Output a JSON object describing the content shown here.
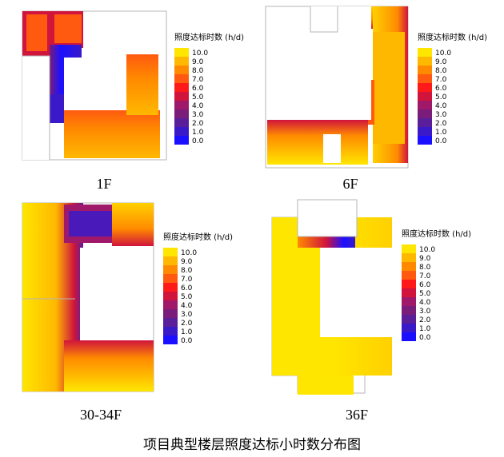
{
  "caption": "项目典型楼层照度达标小时数分布图",
  "legend_title": "照度达标时数 (h/d)",
  "colors": {
    "scale": [
      "#1a10ff",
      "#3a1ac8",
      "#5a1e9a",
      "#7a1c7a",
      "#a0186a",
      "#d0143c",
      "#ff1a1a",
      "#ff5a10",
      "#ff8a00",
      "#ffb800",
      "#ffe600"
    ],
    "outline": "#b4b4b4",
    "text": "#000000"
  },
  "chart_data": [
    {
      "type": "heatmap",
      "floor_label": "1F",
      "legend_title": "照度达标时数 (h/d)",
      "legend_ticks": [
        "10.0",
        "9.0",
        "8.0",
        "7.0",
        "6.0",
        "5.0",
        "4.0",
        "3.0",
        "2.0",
        "1.0",
        "0.0"
      ],
      "value_range": [
        0,
        10
      ]
    },
    {
      "type": "heatmap",
      "floor_label": "6F",
      "legend_title": "照度达标时数 (h/d)",
      "legend_ticks": [
        "10.0",
        "9.0",
        "8.0",
        "7.0",
        "6.0",
        "5.0",
        "4.0",
        "3.0",
        "2.0",
        "1.0",
        "0.0"
      ],
      "value_range": [
        0,
        10
      ]
    },
    {
      "type": "heatmap",
      "floor_label": "30-34F",
      "legend_title": "照度达标时数 (h/d)",
      "legend_ticks": [
        "10.0",
        "9.0",
        "8.0",
        "7.0",
        "6.0",
        "5.0",
        "4.0",
        "3.0",
        "2.0",
        "1.0",
        "0.0"
      ],
      "value_range": [
        0,
        10
      ]
    },
    {
      "type": "heatmap",
      "floor_label": "36F",
      "legend_title": "照度达标时数 (h/d)",
      "legend_ticks": [
        "10.0",
        "9.0",
        "8.0",
        "7.0",
        "6.0",
        "5.0",
        "4.0",
        "3.0",
        "2.0",
        "1.0",
        "0.0"
      ],
      "value_range": [
        0,
        10
      ]
    }
  ]
}
